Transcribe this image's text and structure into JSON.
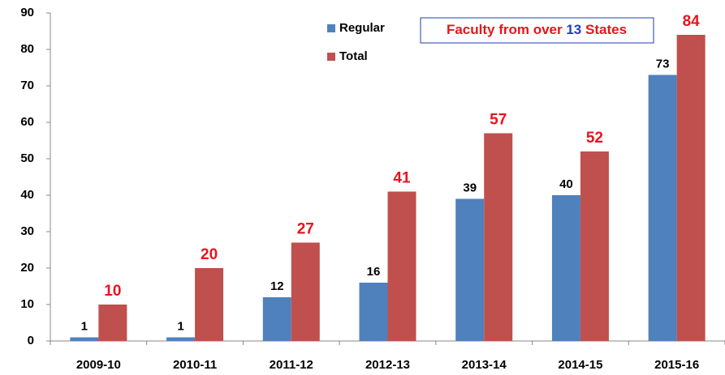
{
  "chart_data": {
    "type": "bar",
    "categories": [
      "2009-10",
      "2010-11",
      "2011-12",
      "2012-13",
      "2013-14",
      "2014-15",
      "2015-16"
    ],
    "series": [
      {
        "name": "Regular",
        "color": "#4f81bd",
        "values": [
          1,
          1,
          12,
          16,
          39,
          40,
          73
        ]
      },
      {
        "name": "Total",
        "color": "#c0504d",
        "values": [
          10,
          20,
          27,
          41,
          57,
          52,
          84
        ]
      }
    ],
    "ylim": [
      0,
      90
    ],
    "yticks": [
      0,
      10,
      20,
      30,
      40,
      50,
      60,
      70,
      80,
      90
    ],
    "annotation": [
      "Faculty from over",
      "13",
      "States"
    ]
  }
}
